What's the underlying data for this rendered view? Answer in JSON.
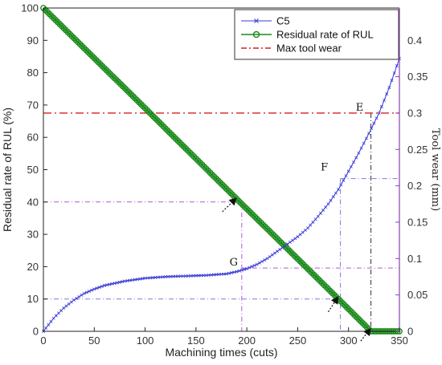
{
  "chart_data": {
    "type": "line",
    "xlabel": "Machining times (cuts)",
    "ylabel_left": "Residual rate of RUL (%)",
    "ylabel_right": "Tool wear (mm)",
    "xlim": [
      0,
      350
    ],
    "ylim_left": [
      0,
      100
    ],
    "ylim_right": [
      0,
      0.4444
    ],
    "x_ticks": [
      0,
      50,
      100,
      150,
      200,
      250,
      300,
      350
    ],
    "y_left_ticks": [
      0,
      10,
      20,
      30,
      40,
      50,
      60,
      70,
      80,
      90,
      100
    ],
    "y_right_ticks": [
      0,
      0.05,
      0.1,
      0.15,
      0.2,
      0.25,
      0.3,
      0.35,
      0.4
    ],
    "y_right_tick_labels": [
      "0",
      "0.05",
      "0.1",
      "0.15",
      "0.2",
      "0.25",
      "0.3",
      "0.35",
      "0.4"
    ],
    "legend_position": "top-right",
    "grid": false,
    "series": [
      {
        "name": "C5",
        "axis": "right",
        "color": "#3a3ad6",
        "marker": "x",
        "x": [
          0,
          10,
          20,
          30,
          40,
          50,
          60,
          70,
          80,
          90,
          100,
          120,
          140,
          160,
          180,
          190,
          200,
          210,
          220,
          230,
          240,
          250,
          260,
          270,
          280,
          290,
          300,
          310,
          320,
          330,
          340,
          350
        ],
        "y": [
          0.0,
          0.018,
          0.032,
          0.043,
          0.052,
          0.058,
          0.063,
          0.066,
          0.069,
          0.071,
          0.073,
          0.075,
          0.076,
          0.077,
          0.079,
          0.082,
          0.086,
          0.092,
          0.1,
          0.11,
          0.12,
          0.13,
          0.142,
          0.158,
          0.175,
          0.195,
          0.22,
          0.245,
          0.272,
          0.3,
          0.335,
          0.375
        ]
      },
      {
        "name": "Residual rate of RUL",
        "axis": "left",
        "color": "#1a8a1a",
        "marker": "o",
        "x": [
          0,
          50,
          100,
          150,
          195,
          240,
          290,
          322,
          330,
          350
        ],
        "y": [
          100,
          84.5,
          69,
          53.4,
          39.4,
          25.5,
          10,
          0,
          0,
          0
        ]
      },
      {
        "name": "Max tool wear",
        "axis": "right",
        "color": "#d62020",
        "style": "dash-dot",
        "x": [
          0,
          350
        ],
        "y": [
          0.3,
          0.3
        ]
      }
    ],
    "annotations": [
      {
        "label": "E",
        "x": 322,
        "y_right": 0.3
      },
      {
        "label": "F",
        "x": 292,
        "y_right": 0.21
      },
      {
        "label": "G",
        "x": 195,
        "y_right": 0.087
      }
    ]
  }
}
